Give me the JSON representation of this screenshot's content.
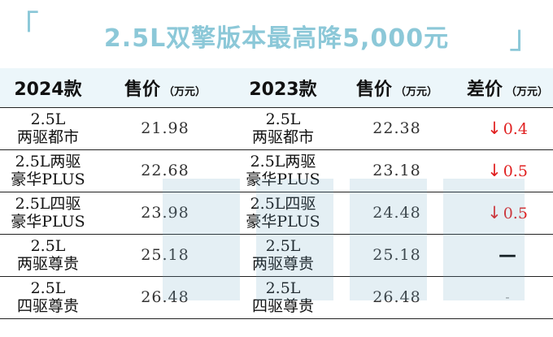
{
  "title": "2.5L双擎版本最高降5,000元",
  "header": {
    "col1": "2024款",
    "col2": "售价",
    "col2_unit": "（万元）",
    "col3": "2023款",
    "col4": "售价",
    "col4_unit": "（万元）",
    "col5": "差价",
    "col5_unit": "（万元）"
  },
  "rows": [
    {
      "trim2024": [
        "2.5L",
        "两驱都市"
      ],
      "price2024": "21.98",
      "trim2023": [
        "2.5L",
        "两驱都市"
      ],
      "price2023": "22.38",
      "diff": "0.4",
      "diff_type": "down"
    },
    {
      "trim2024": [
        "2.5L两驱",
        "豪华PLUS"
      ],
      "price2024": "22.68",
      "trim2023": [
        "2.5L两驱",
        "豪华PLUS"
      ],
      "price2023": "23.18",
      "diff": "0.5",
      "diff_type": "down"
    },
    {
      "trim2024": [
        "2.5L四驱",
        "豪华PLUS"
      ],
      "price2024": "23.98",
      "trim2023": [
        "2.5L四驱",
        "豪华PLUS"
      ],
      "price2023": "24.48",
      "diff": "0.5",
      "diff_type": "down"
    },
    {
      "trim2024": [
        "2.5L",
        "两驱尊贵"
      ],
      "price2024": "25.18",
      "trim2023": [
        "2.5L",
        "两驱尊贵"
      ],
      "price2023": "25.18",
      "diff": "—",
      "diff_type": "bold"
    },
    {
      "trim2024": [
        "2.5L",
        "四驱尊贵"
      ],
      "price2024": "26.48",
      "trim2023": [
        "2.5L",
        "四驱尊贵"
      ],
      "price2023": "26.48",
      "diff": "-",
      "diff_type": "light"
    }
  ],
  "symbols": {
    "down_arrow": "↓",
    "bracket_left": "「",
    "bracket_right": "」"
  },
  "colors": {
    "title": "#8cc8d8",
    "header_bg": "#ecf6fa",
    "down": "#e02020"
  }
}
